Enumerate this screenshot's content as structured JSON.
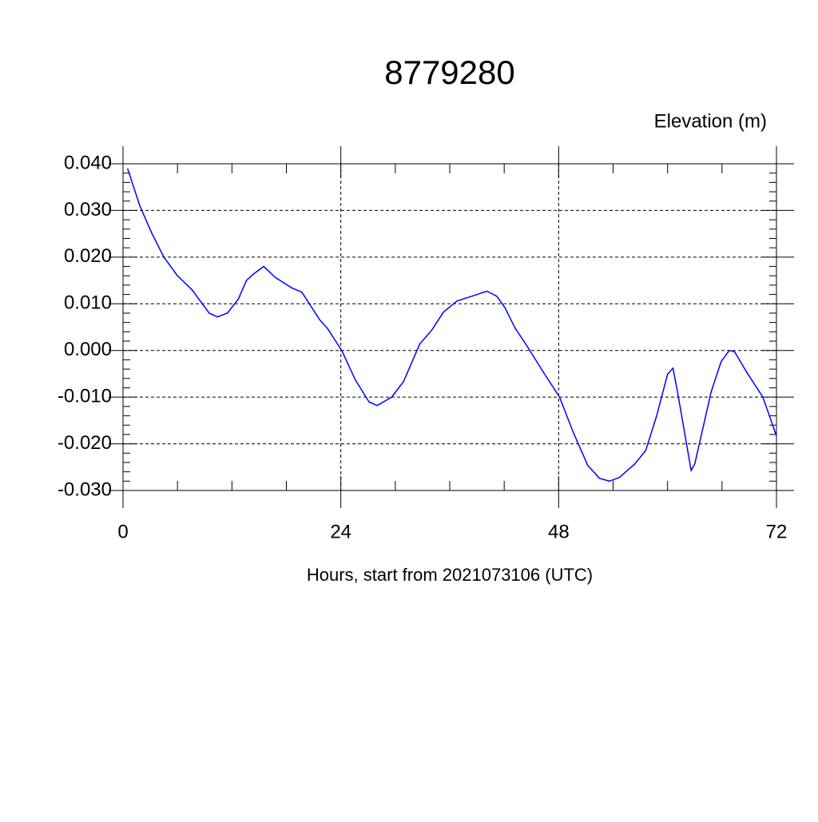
{
  "chart_data": {
    "type": "line",
    "title": "8779280",
    "subtitle": "Elevation (m)",
    "x_label": "Hours, start from 2021073106 (UTC)",
    "xlim": [
      0,
      72
    ],
    "xticks": [
      0,
      24,
      48,
      72
    ],
    "xminorticks": [
      6,
      12,
      18,
      30,
      36,
      42,
      54,
      60,
      66
    ],
    "ylim": [
      -0.03,
      0.04
    ],
    "yticks": [
      {
        "value": 0.04,
        "label": "0.040"
      },
      {
        "value": 0.03,
        "label": "0.030"
      },
      {
        "value": 0.02,
        "label": "0.020"
      },
      {
        "value": 0.01,
        "label": "0.010"
      },
      {
        "value": 0,
        "label": "0.000"
      },
      {
        "value": -0.01,
        "label": "-0.010"
      },
      {
        "value": -0.02,
        "label": "-0.020"
      },
      {
        "value": -0.03,
        "label": "-0.030"
      }
    ],
    "yminorticks": [
      -0.028,
      -0.026,
      -0.024,
      -0.022,
      -0.018,
      -0.016,
      -0.014,
      -0.012,
      -0.008,
      -0.006,
      -0.004,
      -0.002,
      0.002,
      0.004,
      0.006,
      0.008,
      0.012,
      0.014,
      0.016,
      0.018,
      0.022,
      0.024,
      0.026,
      0.028,
      0.032,
      0.034,
      0.036,
      0.038
    ],
    "grid": true,
    "series": [
      {
        "color": "#0000ff",
        "x": [
          0.5,
          1.85,
          3.2,
          4.5,
          6,
          7.6,
          9.5,
          10.4,
          11.5,
          12.7,
          13.6,
          14.4,
          15.5,
          16.8,
          18.6,
          19.7,
          21.7,
          22.5,
          24.1,
          25.6,
          27.1,
          28,
          29.6,
          30.9,
          32.7,
          34,
          35.3,
          36.8,
          38.4,
          40.1,
          41.2,
          42.1,
          43.2,
          44.5,
          46.3,
          48.1,
          49.6,
          51.2,
          52.5,
          53.6,
          54.7,
          56.4,
          57.6,
          58.8,
          60,
          60.6,
          61.1,
          62.6,
          63,
          64.8,
          65.9,
          66.8,
          67.4,
          68.7,
          70.5,
          72
        ],
        "values": [
          0.039,
          0.031,
          0.025,
          0.02,
          0.016,
          0.013,
          0.008,
          0.0072,
          0.008,
          0.011,
          0.015,
          0.0164,
          0.018,
          0.0156,
          0.0134,
          0.0125,
          0.0065,
          0.0048,
          0,
          -0.0063,
          -0.011,
          -0.0118,
          -0.01,
          -0.0067,
          0.0014,
          0.0043,
          0.0082,
          0.0106,
          0.0116,
          0.0127,
          0.0116,
          0.0091,
          0.0048,
          0.001,
          -0.0046,
          -0.01,
          -0.0175,
          -0.0246,
          -0.0274,
          -0.028,
          -0.0272,
          -0.0243,
          -0.0214,
          -0.014,
          -0.0051,
          -0.0038,
          -0.0089,
          -0.0257,
          -0.0243,
          -0.0089,
          -0.0024,
          0,
          -0.0003,
          -0.0046,
          -0.01,
          -0.0183
        ]
      }
    ]
  }
}
